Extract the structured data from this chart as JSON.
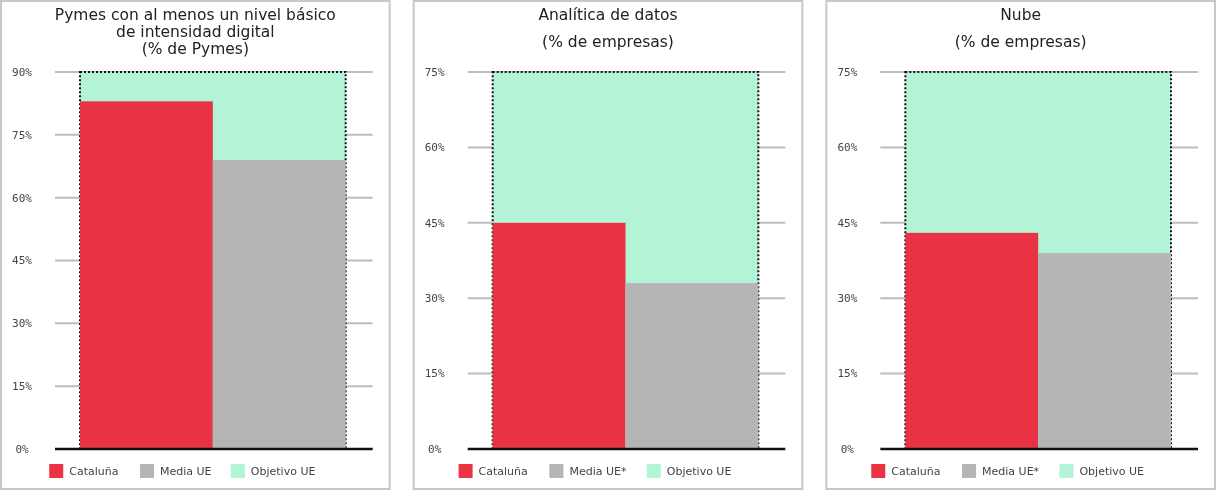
{
  "chart_data": [
    {
      "type": "bar",
      "title": "Pymes con al menos un nivel básico\nde intensidad digital\n(% de Pymes)",
      "categories": [
        null,
        null
      ],
      "series": [
        {
          "name": "Cataluña",
          "color": "#e93345",
          "values": [
            83,
            null
          ]
        },
        {
          "name": "Media UE",
          "color": "#b5b5b5",
          "values": [
            null,
            69
          ]
        }
      ],
      "bands": [
        {
          "axis": "y",
          "from": 0,
          "to": 90,
          "label": "Objetivo UE",
          "color": "#b3f3d6"
        }
      ],
      "ylim": [
        0,
        90
      ],
      "yticks": [
        {
          "value": 0,
          "label": "0%"
        },
        {
          "value": 15,
          "label": "15%"
        },
        {
          "value": 30,
          "label": "30%"
        },
        {
          "value": 45,
          "label": "45%"
        },
        {
          "value": 60,
          "label": "60%"
        },
        {
          "value": 75,
          "label": "75%"
        },
        {
          "value": 90,
          "label": "90%"
        }
      ],
      "grid": "y",
      "legend": "bottom"
    },
    {
      "type": "bar",
      "title": "Analítica de datos\n(% de empresas)",
      "categories": [
        null,
        null
      ],
      "series": [
        {
          "name": "Cataluña",
          "color": "#e93345",
          "values": [
            45,
            null
          ]
        },
        {
          "name": "Media UE*",
          "color": "#b5b5b5",
          "values": [
            null,
            33
          ]
        }
      ],
      "bands": [
        {
          "axis": "y",
          "from": 0,
          "to": 75,
          "label": "Objetivo UE",
          "color": "#b3f3d6"
        }
      ],
      "ylim": [
        0,
        75
      ],
      "yticks": [
        {
          "value": 0,
          "label": "0%"
        },
        {
          "value": 15,
          "label": "15%"
        },
        {
          "value": 30,
          "label": "30%"
        },
        {
          "value": 45,
          "label": "45%"
        },
        {
          "value": 60,
          "label": "60%"
        },
        {
          "value": 75,
          "label": "75%"
        }
      ],
      "grid": "y",
      "legend": "bottom"
    },
    {
      "type": "bar",
      "title": "Nube\n(% de empresas)",
      "categories": [
        null,
        null
      ],
      "series": [
        {
          "name": "Cataluña",
          "color": "#e93345",
          "values": [
            43,
            null
          ]
        },
        {
          "name": "Media UE*",
          "color": "#b5b5b5",
          "values": [
            null,
            39
          ]
        }
      ],
      "bands": [
        {
          "axis": "y",
          "from": 0,
          "to": 75,
          "label": "Objetivo UE",
          "color": "#b3f3d6"
        }
      ],
      "ylim": [
        0,
        75
      ],
      "yticks": [
        {
          "value": 0,
          "label": "0%"
        },
        {
          "value": 15,
          "label": "15%"
        },
        {
          "value": 30,
          "label": "30%"
        },
        {
          "value": 45,
          "label": "45%"
        },
        {
          "value": 60,
          "label": "60%"
        },
        {
          "value": 75,
          "label": "75%"
        }
      ],
      "grid": "y",
      "legend": "bottom"
    }
  ]
}
